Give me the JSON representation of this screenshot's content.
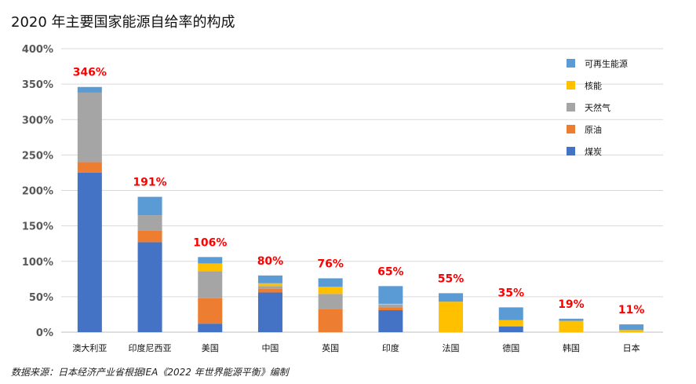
{
  "chart_data": {
    "type": "bar",
    "stacked": true,
    "title": "2020 年主要国家能源自给率的构成",
    "source_note": "数据来源：日本经济产业省根据IEA《2022 年世界能源平衡》编制",
    "categories": [
      "澳大利亚",
      "印度尼西亚",
      "美国",
      "中国",
      "英国",
      "印度",
      "法国",
      "德国",
      "韩国",
      "日本"
    ],
    "ylim": [
      0,
      400
    ],
    "yticks": [
      "0%",
      "50%",
      "100%",
      "150%",
      "200%",
      "250%",
      "300%",
      "350%",
      "400%"
    ],
    "grid": true,
    "legend_position": "top-right",
    "series": [
      {
        "name": "煤炭",
        "color": "#4472c4",
        "values": [
          225,
          127,
          12,
          56,
          0,
          31,
          0,
          8,
          0,
          0
        ]
      },
      {
        "name": "原油",
        "color": "#ed7d31",
        "values": [
          15,
          16,
          36,
          5,
          33,
          4,
          0,
          0,
          0,
          0
        ]
      },
      {
        "name": "天然气",
        "color": "#a5a5a5",
        "values": [
          98,
          22,
          38,
          4,
          21,
          4,
          0,
          1,
          0,
          0
        ]
      },
      {
        "name": "核能",
        "color": "#ffc000",
        "values": [
          0,
          0,
          11,
          4,
          10,
          1,
          43,
          8,
          16,
          3
        ]
      },
      {
        "name": "可再生能源",
        "color": "#5b9bd5",
        "values": [
          8,
          26,
          9,
          11,
          12,
          25,
          12,
          18,
          3,
          8
        ]
      }
    ],
    "totals": [
      "346%",
      "191%",
      "106%",
      "80%",
      "76%",
      "65%",
      "55%",
      "35%",
      "19%",
      "11%"
    ],
    "total_values": [
      346,
      191,
      106,
      80,
      76,
      65,
      55,
      35,
      19,
      11
    ]
  }
}
